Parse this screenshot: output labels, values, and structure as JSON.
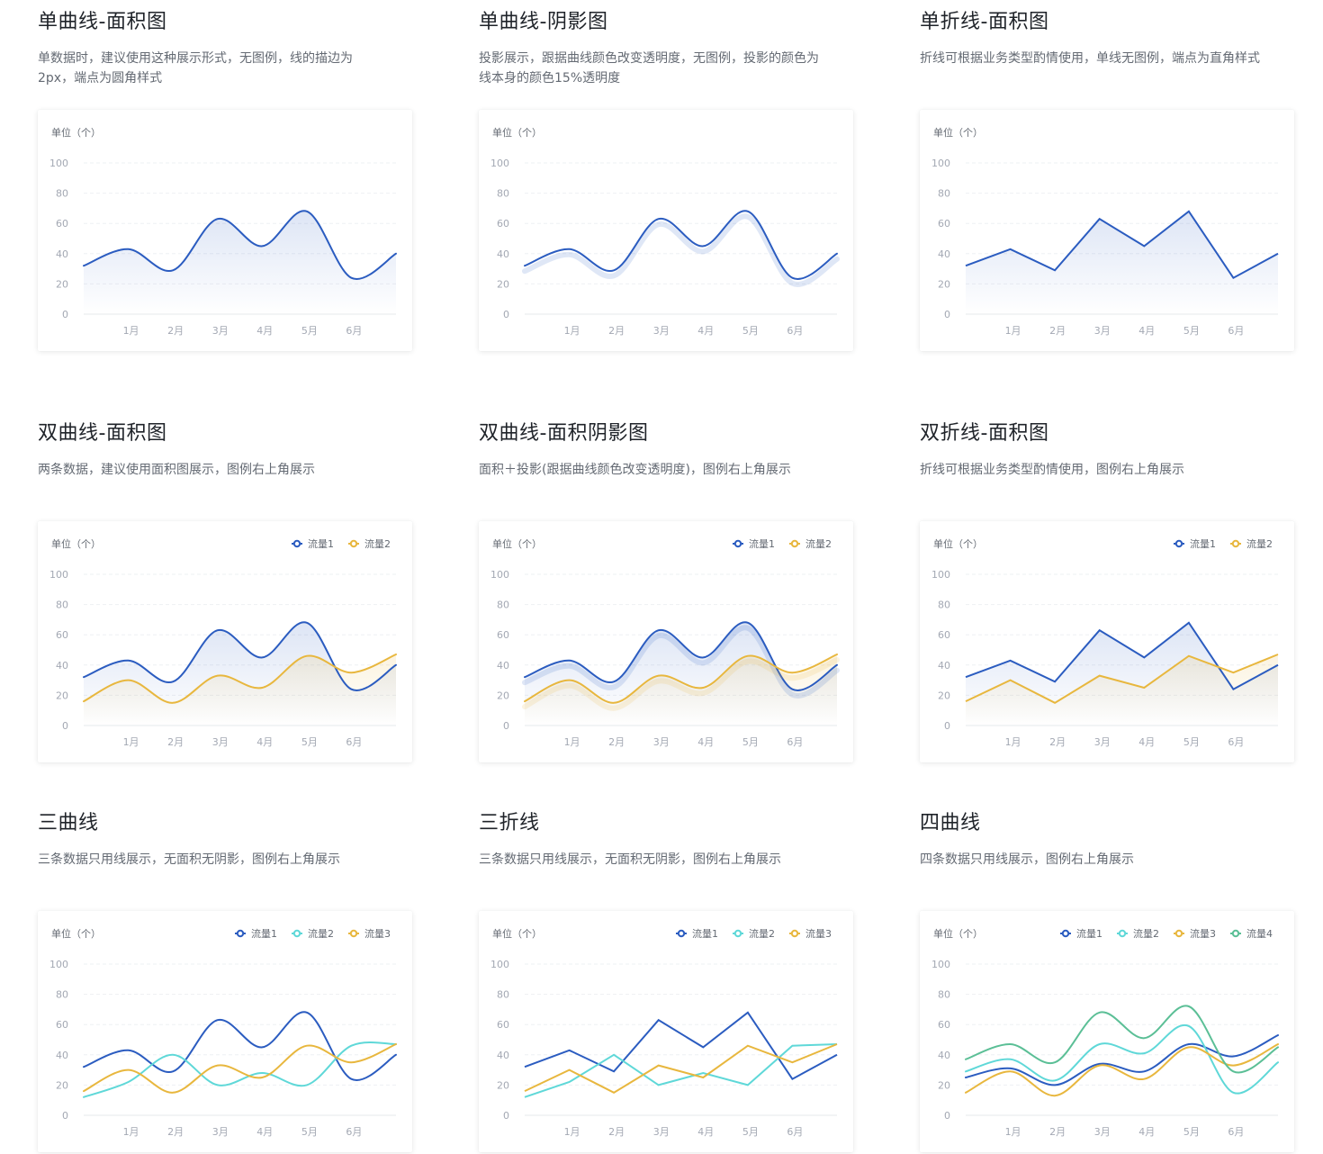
{
  "shared": {
    "unit_label": "单位（个）",
    "y_ticks": [
      "0",
      "20",
      "40",
      "60",
      "80",
      "100"
    ],
    "months": [
      "1月",
      "2月",
      "3月",
      "4月",
      "5月",
      "6月"
    ]
  },
  "colors": {
    "series1": "#2b5cc0",
    "series2_cyan": "#5fd8d8",
    "series_yellow": "#e8b73e",
    "series4_green": "#5bbf96",
    "grid": "#eef0f3",
    "tick_text": "#a3a8b3",
    "unit_text": "#646a73",
    "legend_text": "#646a73"
  },
  "sections": [
    {
      "title": "单曲线-面积图",
      "desc_lines": [
        "单数据时，建议使用这种展示形式，无图例，线的描边为",
        "2px，端点为圆角样式"
      ]
    },
    {
      "title": "单曲线-阴影图",
      "desc_lines": [
        "投影展示，跟据曲线颜色改变透明度，无图例，投影的颜色为",
        "线本身的颜色15%透明度"
      ]
    },
    {
      "title": "单折线-面积图",
      "desc_lines": [
        "折线可根据业务类型酌情使用，单线无图例，端点为直角样式"
      ]
    },
    {
      "title": "双曲线-面积图",
      "desc_lines": [
        "两条数据，建议使用面积图展示，图例右上角展示"
      ]
    },
    {
      "title": "双曲线-面积阴影图",
      "desc_lines": [
        "面积＋投影(跟据曲线颜色改变透明度)，图例右上角展示"
      ]
    },
    {
      "title": "双折线-面积图",
      "desc_lines": [
        "折线可根据业务类型酌情使用，图例右上角展示"
      ]
    },
    {
      "title": "三曲线",
      "desc_lines": [
        "三条数据只用线展示，无面积无阴影，图例右上角展示"
      ]
    },
    {
      "title": "三折线",
      "desc_lines": [
        "三条数据只用线展示，无面积无阴影，图例右上角展示"
      ]
    },
    {
      "title": "四曲线",
      "desc_lines": [
        "四条数据只用线展示，图例右上角展示"
      ]
    }
  ],
  "chart_data": [
    {
      "type": "area",
      "smooth": true,
      "shadow": false,
      "legend": "none",
      "ylabel": "单位（个）",
      "ylim": [
        0,
        100
      ],
      "grid": true,
      "x": [
        "",
        "1月",
        "2月",
        "3月",
        "4月",
        "5月",
        "6月",
        ""
      ],
      "series": [
        {
          "color": "#2b5cc0",
          "area": true,
          "values": [
            32,
            43,
            29,
            63,
            45,
            68,
            24,
            40
          ]
        }
      ]
    },
    {
      "type": "line",
      "smooth": true,
      "shadow": true,
      "legend": "none",
      "ylabel": "单位（个）",
      "ylim": [
        0,
        100
      ],
      "grid": true,
      "x": [
        "",
        "1月",
        "2月",
        "3月",
        "4月",
        "5月",
        "6月",
        ""
      ],
      "series": [
        {
          "color": "#2b5cc0",
          "area": false,
          "values": [
            32,
            43,
            29,
            63,
            45,
            68,
            24,
            40
          ]
        }
      ]
    },
    {
      "type": "area",
      "smooth": false,
      "shadow": false,
      "legend": "none",
      "ylabel": "单位（个）",
      "ylim": [
        0,
        100
      ],
      "grid": true,
      "x": [
        "",
        "1月",
        "2月",
        "3月",
        "4月",
        "5月",
        "6月",
        ""
      ],
      "series": [
        {
          "color": "#2b5cc0",
          "area": true,
          "values": [
            32,
            43,
            29,
            63,
            45,
            68,
            24,
            40
          ]
        }
      ]
    },
    {
      "type": "area",
      "smooth": true,
      "shadow": false,
      "legend": "top-right",
      "ylabel": "单位（个）",
      "ylim": [
        0,
        100
      ],
      "grid": true,
      "x": [
        "",
        "1月",
        "2月",
        "3月",
        "4月",
        "5月",
        "6月",
        ""
      ],
      "series": [
        {
          "name": "流量1",
          "color": "#2b5cc0",
          "area": true,
          "values": [
            32,
            43,
            29,
            63,
            45,
            68,
            24,
            40
          ]
        },
        {
          "name": "流量2",
          "color": "#e8b73e",
          "area": true,
          "values": [
            16,
            30,
            15,
            33,
            25,
            46,
            35,
            47
          ]
        }
      ]
    },
    {
      "type": "area",
      "smooth": true,
      "shadow": true,
      "legend": "top-right",
      "ylabel": "单位（个）",
      "ylim": [
        0,
        100
      ],
      "grid": true,
      "x": [
        "",
        "1月",
        "2月",
        "3月",
        "4月",
        "5月",
        "6月",
        ""
      ],
      "series": [
        {
          "name": "流量1",
          "color": "#2b5cc0",
          "area": true,
          "values": [
            32,
            43,
            29,
            63,
            45,
            68,
            24,
            40
          ]
        },
        {
          "name": "流量2",
          "color": "#e8b73e",
          "area": true,
          "values": [
            16,
            30,
            15,
            33,
            25,
            46,
            35,
            47
          ]
        }
      ]
    },
    {
      "type": "area",
      "smooth": false,
      "shadow": false,
      "legend": "top-right",
      "ylabel": "单位（个）",
      "ylim": [
        0,
        100
      ],
      "grid": true,
      "x": [
        "",
        "1月",
        "2月",
        "3月",
        "4月",
        "5月",
        "6月",
        ""
      ],
      "series": [
        {
          "name": "流量1",
          "color": "#2b5cc0",
          "area": true,
          "values": [
            32,
            43,
            29,
            63,
            45,
            68,
            24,
            40
          ]
        },
        {
          "name": "流量2",
          "color": "#e8b73e",
          "area": true,
          "values": [
            16,
            30,
            15,
            33,
            25,
            46,
            35,
            47
          ]
        }
      ]
    },
    {
      "type": "line",
      "smooth": true,
      "shadow": false,
      "legend": "top-right",
      "ylabel": "单位（个）",
      "ylim": [
        0,
        100
      ],
      "grid": true,
      "x": [
        "",
        "1月",
        "2月",
        "3月",
        "4月",
        "5月",
        "6月",
        ""
      ],
      "series": [
        {
          "name": "流量1",
          "color": "#2b5cc0",
          "area": false,
          "values": [
            32,
            43,
            29,
            63,
            45,
            68,
            24,
            40
          ]
        },
        {
          "name": "流量2",
          "color": "#5fd8d8",
          "area": false,
          "values": [
            12,
            22,
            40,
            20,
            28,
            20,
            46,
            47
          ]
        },
        {
          "name": "流量3",
          "color": "#e8b73e",
          "area": false,
          "values": [
            16,
            30,
            15,
            33,
            25,
            46,
            35,
            47
          ]
        }
      ]
    },
    {
      "type": "line",
      "smooth": false,
      "shadow": false,
      "legend": "top-right",
      "ylabel": "单位（个）",
      "ylim": [
        0,
        100
      ],
      "grid": true,
      "x": [
        "",
        "1月",
        "2月",
        "3月",
        "4月",
        "5月",
        "6月",
        ""
      ],
      "series": [
        {
          "name": "流量1",
          "color": "#2b5cc0",
          "area": false,
          "values": [
            32,
            43,
            29,
            63,
            45,
            68,
            24,
            40
          ]
        },
        {
          "name": "流量2",
          "color": "#5fd8d8",
          "area": false,
          "values": [
            12,
            22,
            40,
            20,
            28,
            20,
            46,
            47
          ]
        },
        {
          "name": "流量3",
          "color": "#e8b73e",
          "area": false,
          "values": [
            16,
            30,
            15,
            33,
            25,
            46,
            35,
            47
          ]
        }
      ]
    },
    {
      "type": "line",
      "smooth": true,
      "shadow": false,
      "legend": "top-right",
      "ylabel": "单位（个）",
      "ylim": [
        0,
        100
      ],
      "grid": true,
      "x": [
        "",
        "1月",
        "2月",
        "3月",
        "4月",
        "5月",
        "6月",
        ""
      ],
      "series": [
        {
          "name": "流量1",
          "color": "#2b5cc0",
          "area": false,
          "values": [
            25,
            31,
            20,
            34,
            29,
            47,
            39,
            53
          ]
        },
        {
          "name": "流量2",
          "color": "#5fd8d8",
          "area": false,
          "values": [
            29,
            37,
            23,
            47,
            41,
            59,
            15,
            35
          ]
        },
        {
          "name": "流量3",
          "color": "#e8b73e",
          "area": false,
          "values": [
            15,
            29,
            13,
            33,
            24,
            45,
            33,
            47
          ]
        },
        {
          "name": "流量4",
          "color": "#5bbf96",
          "area": false,
          "values": [
            37,
            47,
            35,
            68,
            51,
            72,
            29,
            45
          ]
        }
      ]
    }
  ]
}
